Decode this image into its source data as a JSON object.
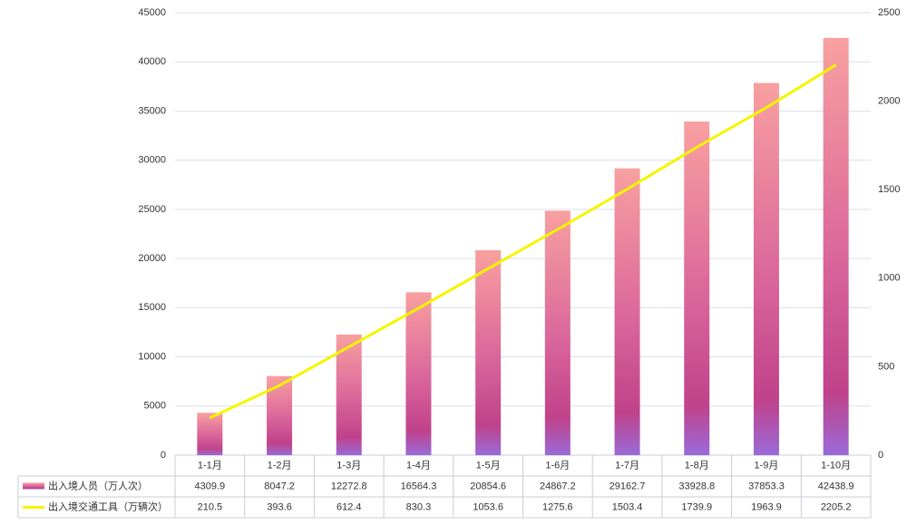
{
  "chart_data": {
    "type": "bar",
    "categories": [
      "1-1月",
      "1-2月",
      "1-3月",
      "1-4月",
      "1-5月",
      "1-6月",
      "1-7月",
      "1-8月",
      "1-9月",
      "1-10月"
    ],
    "series": [
      {
        "name": "出入境人员（万人次）",
        "type": "bar",
        "color": "#c0428a",
        "values": [
          4309.9,
          8047.2,
          12272.8,
          16564.3,
          20854.6,
          24867.2,
          29162.7,
          33928.8,
          37853.3,
          42438.9
        ]
      },
      {
        "name": "出入境交通工具（万辆次）",
        "type": "line",
        "axis": "y2",
        "color": "#f5f500",
        "values": [
          210.5,
          393.6,
          612.4,
          830.3,
          1053.6,
          1275.6,
          1503.4,
          1739.9,
          1963.9,
          2205.2
        ]
      }
    ],
    "ylim": [
      0,
      45000
    ],
    "yticks": [
      0,
      5000,
      10000,
      15000,
      20000,
      25000,
      30000,
      35000,
      40000,
      45000
    ],
    "y2lim": [
      0,
      2500
    ],
    "y2ticks": [
      0,
      500,
      1000,
      1500,
      2000,
      2500
    ],
    "grid": true
  }
}
